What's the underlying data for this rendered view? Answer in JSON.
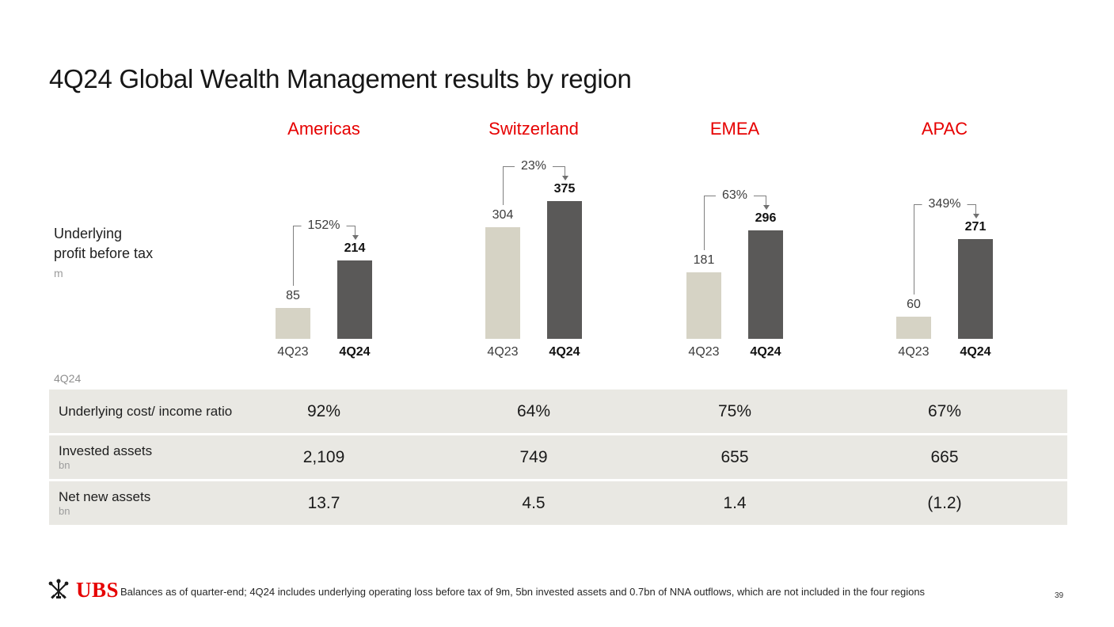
{
  "title": "4Q24 Global Wealth Management results by region",
  "regions": [
    "Americas",
    "Switzerland",
    "EMEA",
    "APAC"
  ],
  "chart_section": {
    "label_line1": "Underlying",
    "label_line2": "profit before tax",
    "unit": "m"
  },
  "chart_data": {
    "type": "bar",
    "title": "Underlying profit before tax (m)",
    "categories": [
      "4Q23",
      "4Q24"
    ],
    "groups": [
      {
        "region": "Americas",
        "values": [
          85,
          214
        ],
        "change": "152%"
      },
      {
        "region": "Switzerland",
        "values": [
          304,
          375
        ],
        "change": "23%"
      },
      {
        "region": "EMEA",
        "values": [
          181,
          296
        ],
        "change": "63%"
      },
      {
        "region": "APAC",
        "values": [
          60,
          271
        ],
        "change": "349%"
      }
    ],
    "colors": {
      "bar_4q23": "#d6d3c5",
      "bar_4q24": "#5a5958"
    },
    "layout_hint": "grouped pairs per region, change bracket from 4Q23 bar to arrow above 4Q24 bar"
  },
  "table": {
    "caption": "4Q24",
    "rows": [
      {
        "label": "Underlying cost/ income ratio",
        "unit": "",
        "values": [
          "92%",
          "64%",
          "75%",
          "67%"
        ]
      },
      {
        "label": "Invested assets",
        "unit": "bn",
        "values": [
          "2,109",
          "749",
          "655",
          "665"
        ]
      },
      {
        "label": "Net new assets",
        "unit": "bn",
        "values": [
          "13.7",
          "4.5",
          "1.4",
          "(1.2)"
        ]
      }
    ]
  },
  "footer": {
    "logo_text": "UBS",
    "note": "Balances as of quarter-end; 4Q24 includes underlying operating loss before tax of 9m, 5bn invested assets and 0.7bn of NNA outflows, which are not included in the four regions",
    "page_number": "39"
  },
  "colors": {
    "accent_red": "#e60000",
    "bar_light": "#d6d3c5",
    "bar_dark": "#5a5958",
    "table_row_bg": "#e9e8e3"
  }
}
